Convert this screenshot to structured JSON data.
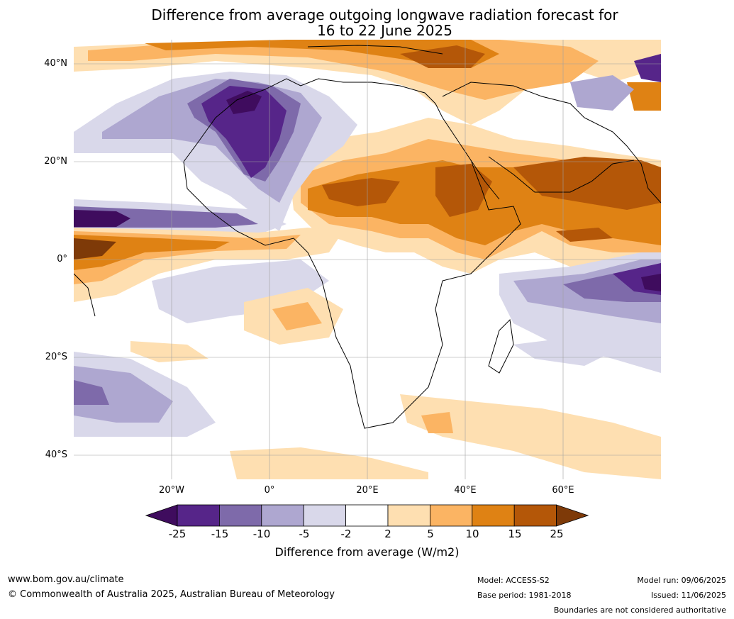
{
  "title_line1": "Difference from average outgoing longwave radiation forecast for",
  "title_line2": "16 to 22 June 2025",
  "lat_labels": [
    "40°N",
    "20°N",
    "0°",
    "20°S",
    "40°S"
  ],
  "lon_labels": [
    "20°W",
    "0°",
    "20°E",
    "40°E",
    "60°E"
  ],
  "colorbar": {
    "title": "Difference from average (W/m2)",
    "ticks": [
      "-25",
      "-15",
      "-10",
      "-5",
      "-2",
      "2",
      "5",
      "10",
      "15",
      "25"
    ],
    "colors": [
      "#3f0c5e",
      "#562589",
      "#7e6aaa",
      "#aea7d0",
      "#d9d8ea",
      "#ffffff",
      "#fedfb1",
      "#fbb463",
      "#df8214",
      "#b45708",
      "#7e3a08"
    ]
  },
  "footer": {
    "website": "www.bom.gov.au/climate",
    "copyright": "© Commonwealth of Australia 2025, Australian Bureau of Meteorology",
    "model": "Model: ACCESS-S2",
    "base_period": "Base period: 1981-2018",
    "model_run": "Model run: 09/06/2025",
    "issued": "Issued: 11/06/2025",
    "boundaries": "Boundaries are not considered authoritative"
  }
}
